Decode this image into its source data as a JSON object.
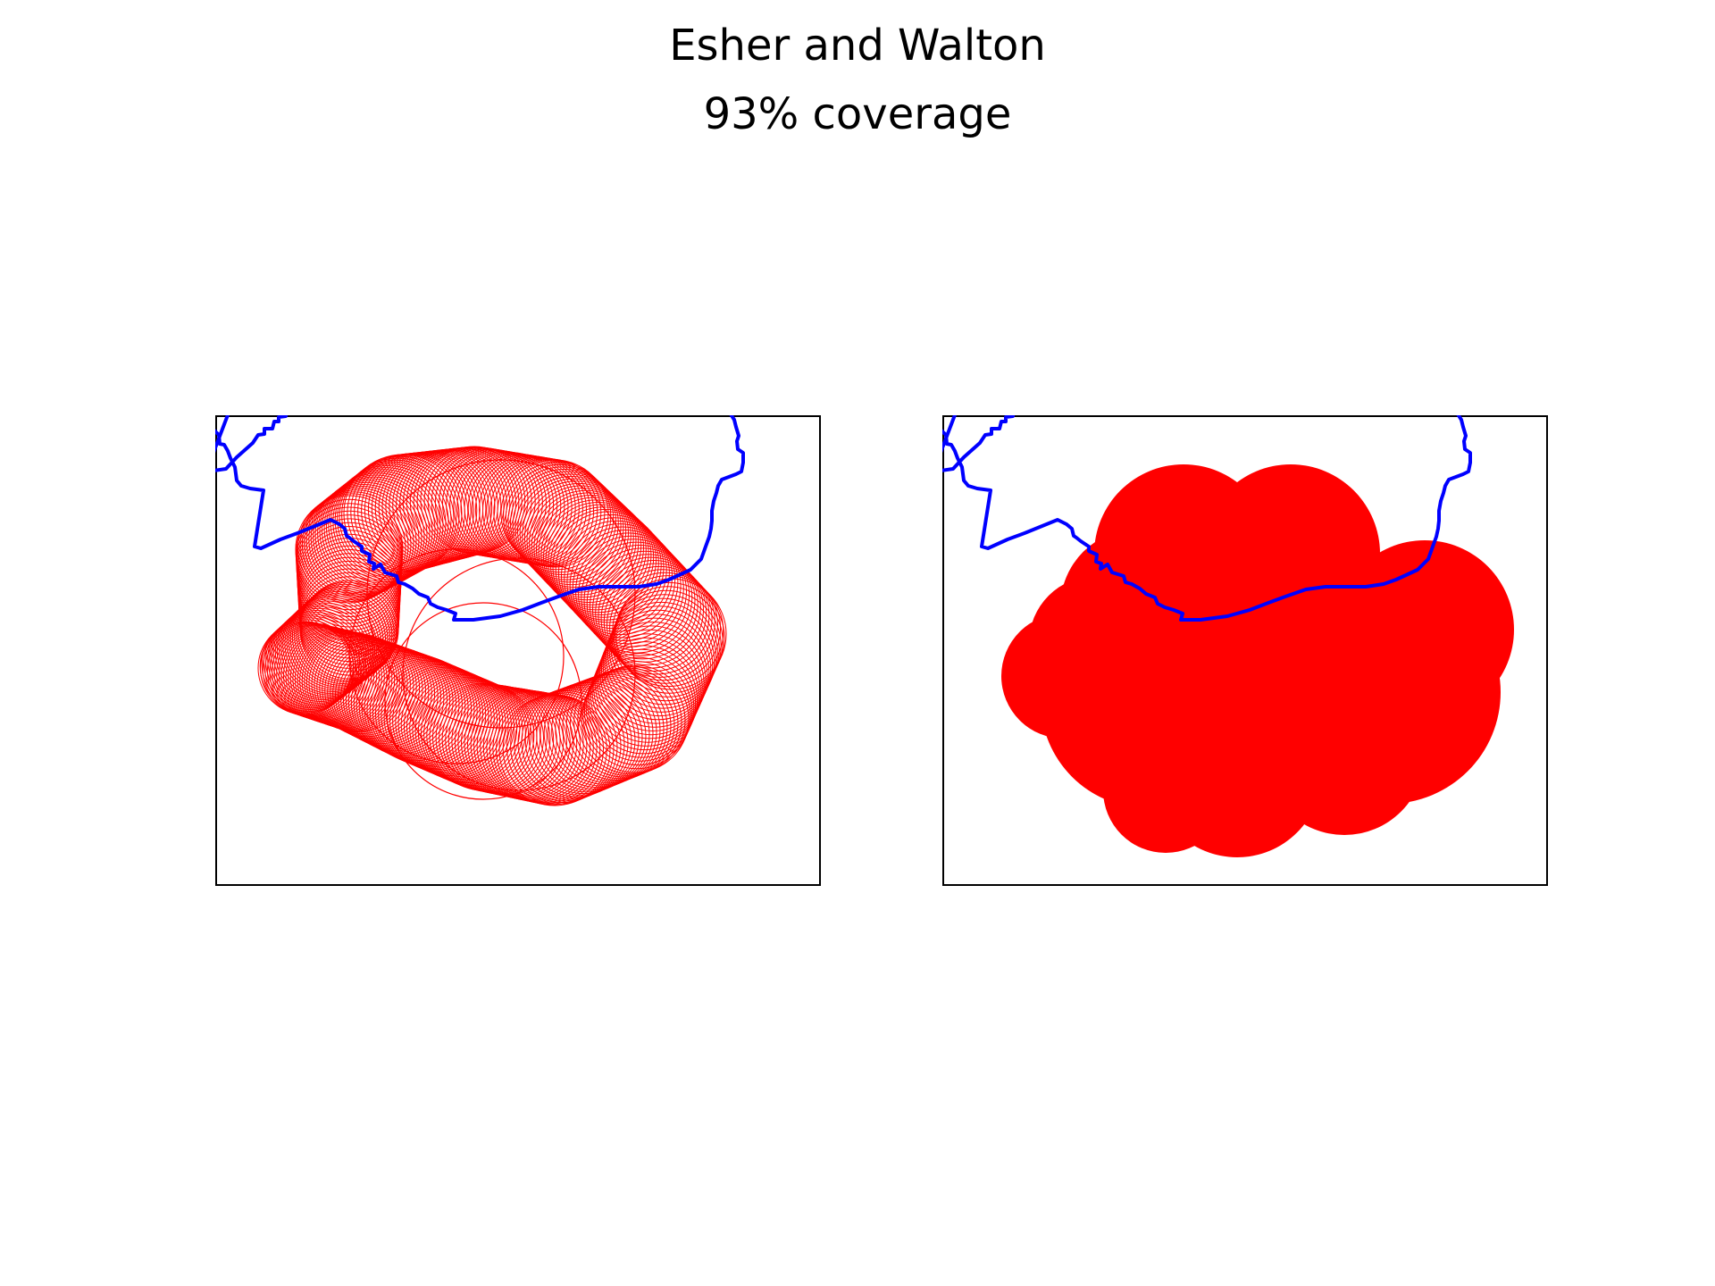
{
  "title": "Esher and Walton",
  "subtitle": "93% coverage",
  "colors": {
    "boundary": "#0000ff",
    "coverage": "#ff0000",
    "frame": "#000000"
  },
  "panels": [
    {
      "name": "circle-outlines-panel",
      "style": "outline-circles"
    },
    {
      "name": "filled-coverage-panel",
      "style": "filled-union"
    }
  ]
}
